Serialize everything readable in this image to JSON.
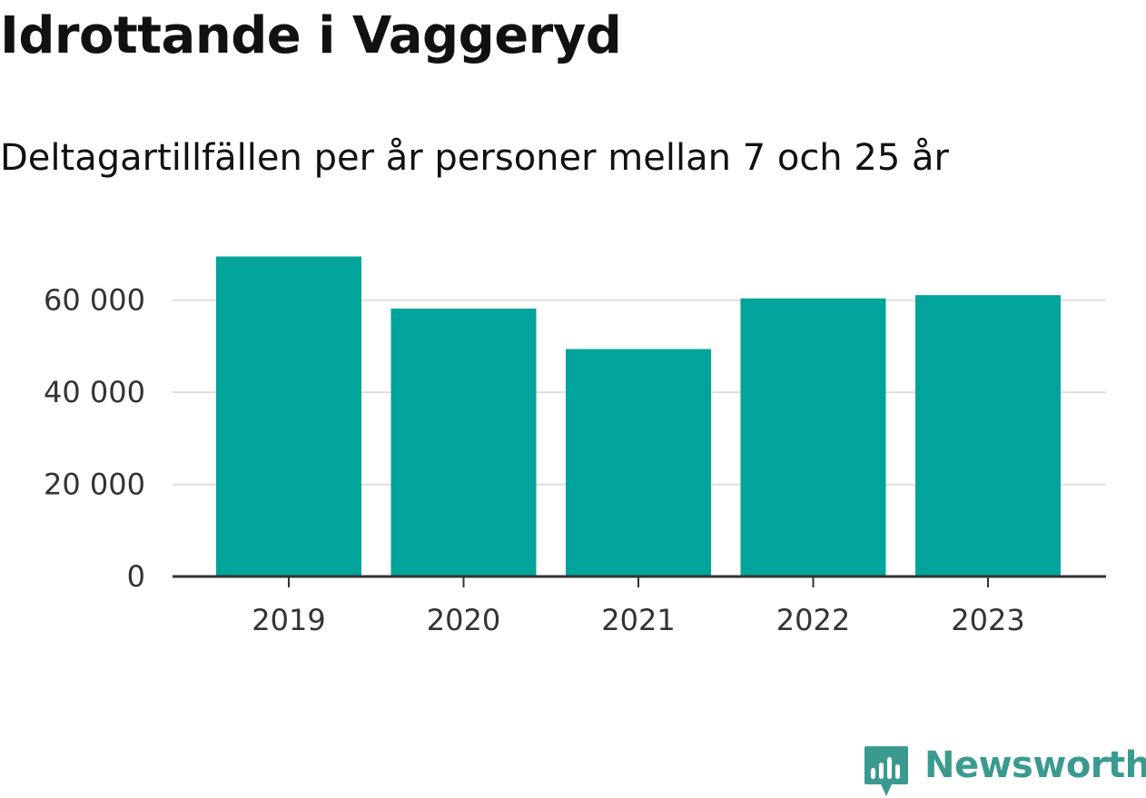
{
  "header": {
    "title": "Idrottande i Vaggeryd",
    "subtitle": "Deltagartillfällen per år personer mellan 7 och 25 år"
  },
  "chart_data": {
    "type": "bar",
    "title": "Idrottande i Vaggeryd",
    "subtitle": "Deltagartillfällen per år personer mellan 7 och 25 år",
    "xlabel": "",
    "ylabel": "",
    "categories": [
      "2019",
      "2020",
      "2021",
      "2022",
      "2023"
    ],
    "values": [
      69500,
      58200,
      49400,
      60400,
      61100
    ],
    "ylim": [
      0,
      70000
    ],
    "yticks": [
      0,
      20000,
      40000,
      60000
    ],
    "ytick_labels": [
      "0",
      "20 000",
      "40 000",
      "60 000"
    ],
    "grid": true,
    "legend": "none",
    "bar_color": "#00a49a",
    "grid_color": "#dddddd",
    "axis_color": "#333333"
  },
  "brand": {
    "name": "Newsworthy",
    "icon": "newsworthy-logo-icon",
    "color": "#3b9a8f"
  }
}
